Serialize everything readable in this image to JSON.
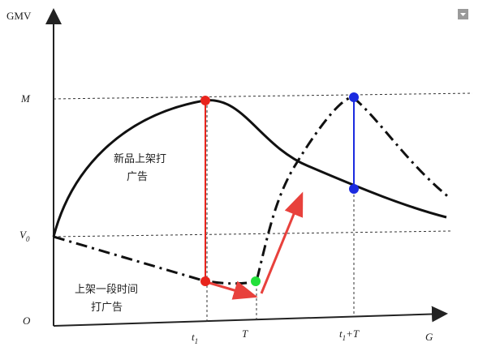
{
  "axes": {
    "y_label": "GMV",
    "x_label": "G",
    "origin": "O"
  },
  "y_marks": {
    "top": "M",
    "base": {
      "main": "V",
      "sub": "0"
    }
  },
  "x_marks": {
    "first": {
      "main": "t",
      "sub": "1"
    },
    "second": "T",
    "third": {
      "main": "t",
      "sub": "1",
      "rest": "+T"
    }
  },
  "annotations": {
    "new_product": [
      "新品上架打",
      "广告"
    ],
    "later": [
      "上架一段时间",
      "打广告"
    ]
  }
}
